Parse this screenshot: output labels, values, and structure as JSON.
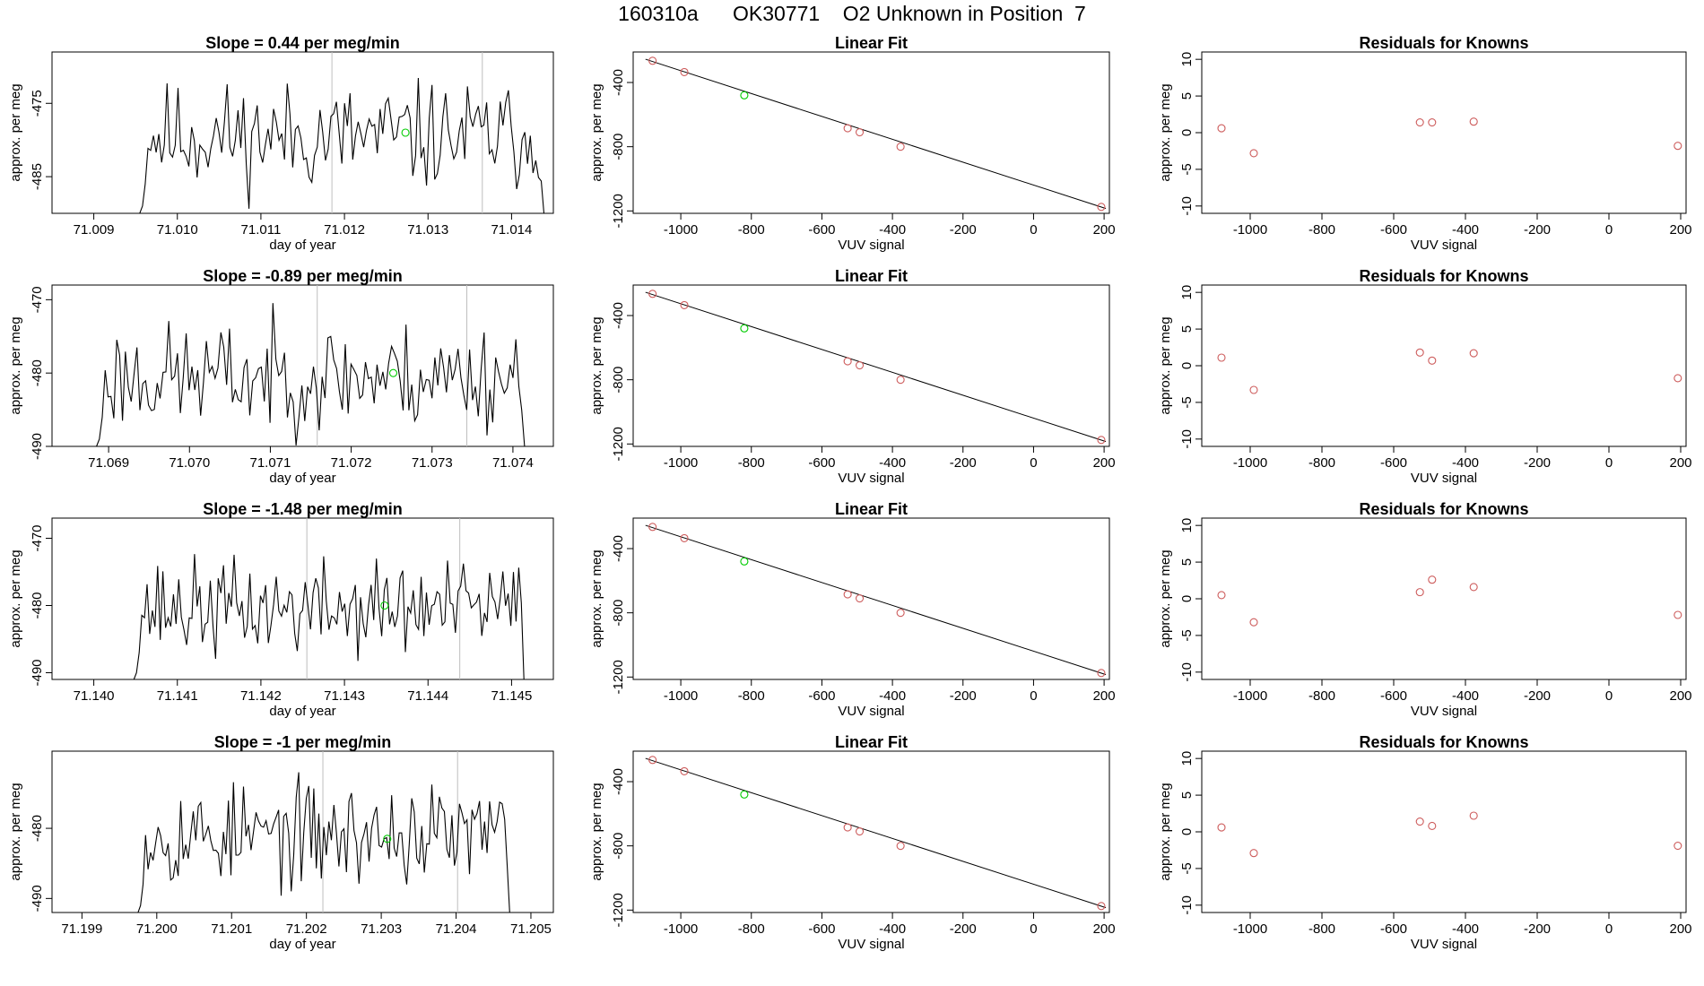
{
  "title": "160310a      OK30771    O2 Unknown in Position  7",
  "colors": {
    "line": "#000000",
    "known": "#cd5c5c",
    "unknown": "#00cc00",
    "vline": "#bebebe"
  },
  "chart_data": [
    {
      "type": "line",
      "title": "Slope =  0.44  per meg/min",
      "xlabel": "day of year",
      "ylabel": "approx. per meg",
      "xlim": [
        71.0085,
        71.0145
      ],
      "ylim": [
        -490,
        -468
      ],
      "xticks": [
        71.009,
        71.01,
        71.011,
        71.012,
        71.013,
        71.014
      ],
      "xtick_labels": [
        "71.009",
        "71.010",
        "71.011",
        "71.012",
        "71.013",
        "71.014"
      ],
      "yticks": [
        -475,
        -485
      ],
      "ytick_labels": [
        "-475",
        "-485"
      ],
      "x_start": 71.00955,
      "x_end": 71.01442,
      "seed": 11,
      "mean": -479.5,
      "spread": 4.5,
      "vlines": [
        71.01185,
        71.01365
      ],
      "unknown_point": {
        "x": 71.01273,
        "y": -479.0
      }
    },
    {
      "type": "scatter",
      "title": "Linear Fit",
      "xlabel": "VUV signal",
      "ylabel": "approx. per meg",
      "xlim": [
        -1135,
        215
      ],
      "ylim": [
        -1215,
        -210
      ],
      "xticks": [
        -1000,
        -800,
        -600,
        -400,
        -200,
        0,
        200
      ],
      "xtick_labels": [
        "-1000",
        "-800",
        "-600",
        "-400",
        "-200",
        "0",
        "200"
      ],
      "yticks": [
        -400,
        -800,
        -1200
      ],
      "ytick_labels": [
        "-400",
        "-800",
        "-1200"
      ],
      "known_points": [
        {
          "x": -1080,
          "y": -265
        },
        {
          "x": -990,
          "y": -335
        },
        {
          "x": -527,
          "y": -685
        },
        {
          "x": -493,
          "y": -710
        },
        {
          "x": -377,
          "y": -800
        },
        {
          "x": 192,
          "y": -1175
        }
      ],
      "unknown_point": {
        "x": -820,
        "y": -480
      },
      "fit_line": {
        "x": [
          -1100,
          205
        ],
        "y": [
          -255,
          -1185
        ]
      }
    },
    {
      "type": "scatter",
      "title": "Residuals for Knowns",
      "xlabel": "VUV signal",
      "ylabel": "approx. per meg",
      "xlim": [
        -1135,
        215
      ],
      "ylim": [
        -11,
        11
      ],
      "xticks": [
        -1000,
        -800,
        -600,
        -400,
        -200,
        0,
        200
      ],
      "xtick_labels": [
        "-1000",
        "-800",
        "-600",
        "-400",
        "-200",
        "0",
        "200"
      ],
      "yticks": [
        10,
        5,
        0,
        -5,
        -10
      ],
      "ytick_labels": [
        "10",
        "5",
        "0",
        "-5",
        "-10"
      ],
      "known_points": [
        {
          "x": -1080,
          "y": 0.6
        },
        {
          "x": -990,
          "y": -2.8
        },
        {
          "x": -527,
          "y": 1.4
        },
        {
          "x": -493,
          "y": 1.4
        },
        {
          "x": -377,
          "y": 1.5
        },
        {
          "x": 192,
          "y": -1.8
        }
      ]
    },
    {
      "type": "line",
      "title": "Slope =  -0.89  per meg/min",
      "xlabel": "day of year",
      "ylabel": "approx. per meg",
      "xlim": [
        71.0683,
        71.0745
      ],
      "ylim": [
        -490,
        -468
      ],
      "xticks": [
        71.069,
        71.07,
        71.071,
        71.072,
        71.073,
        71.074
      ],
      "xtick_labels": [
        "71.069",
        "71.070",
        "71.071",
        "71.072",
        "71.073",
        "71.074"
      ],
      "yticks": [
        -470,
        -480,
        -490
      ],
      "ytick_labels": [
        "-470",
        "-480",
        "-490"
      ],
      "x_start": 71.06885,
      "x_end": 71.07418,
      "seed": 23,
      "mean": -480.5,
      "spread": 4.5,
      "vlines": [
        71.07158,
        71.07343
      ],
      "unknown_point": {
        "x": 71.07252,
        "y": -480.0
      }
    },
    {
      "type": "scatter",
      "title": "Linear Fit",
      "xlabel": "VUV signal",
      "ylabel": "approx. per meg",
      "xlim": [
        -1135,
        215
      ],
      "ylim": [
        -1215,
        -210
      ],
      "xticks": [
        -1000,
        -800,
        -600,
        -400,
        -200,
        0,
        200
      ],
      "xtick_labels": [
        "-1000",
        "-800",
        "-600",
        "-400",
        "-200",
        "0",
        "200"
      ],
      "yticks": [
        -400,
        -800,
        -1200
      ],
      "ytick_labels": [
        "-400",
        "-800",
        "-1200"
      ],
      "known_points": [
        {
          "x": -1080,
          "y": -265
        },
        {
          "x": -990,
          "y": -335
        },
        {
          "x": -527,
          "y": -685
        },
        {
          "x": -493,
          "y": -710
        },
        {
          "x": -377,
          "y": -800
        },
        {
          "x": 192,
          "y": -1175
        }
      ],
      "unknown_point": {
        "x": -820,
        "y": -480
      },
      "fit_line": {
        "x": [
          -1100,
          205
        ],
        "y": [
          -255,
          -1185
        ]
      }
    },
    {
      "type": "scatter",
      "title": "Residuals for Knowns",
      "xlabel": "VUV signal",
      "ylabel": "approx. per meg",
      "xlim": [
        -1135,
        215
      ],
      "ylim": [
        -11,
        11
      ],
      "xticks": [
        -1000,
        -800,
        -600,
        -400,
        -200,
        0,
        200
      ],
      "xtick_labels": [
        "-1000",
        "-800",
        "-600",
        "-400",
        "-200",
        "0",
        "200"
      ],
      "yticks": [
        10,
        5,
        0,
        -5,
        -10
      ],
      "ytick_labels": [
        "10",
        "5",
        "0",
        "-5",
        "-10"
      ],
      "known_points": [
        {
          "x": -1080,
          "y": 1.1
        },
        {
          "x": -990,
          "y": -3.3
        },
        {
          "x": -527,
          "y": 1.8
        },
        {
          "x": -493,
          "y": 0.7
        },
        {
          "x": -377,
          "y": 1.7
        },
        {
          "x": 192,
          "y": -1.7
        }
      ]
    },
    {
      "type": "line",
      "title": "Slope =  -1.48  per meg/min",
      "xlabel": "day of year",
      "ylabel": "approx. per meg",
      "xlim": [
        71.1395,
        71.1455
      ],
      "ylim": [
        -491,
        -467
      ],
      "xticks": [
        71.14,
        71.141,
        71.142,
        71.143,
        71.144,
        71.145
      ],
      "xtick_labels": [
        "71.140",
        "71.141",
        "71.142",
        "71.143",
        "71.144",
        "71.145"
      ],
      "yticks": [
        -470,
        -480,
        -490
      ],
      "ytick_labels": [
        "-470",
        "-480",
        "-490"
      ],
      "x_start": 71.14048,
      "x_end": 71.14518,
      "seed": 37,
      "mean": -480.5,
      "spread": 4.5,
      "vlines": [
        71.14255,
        71.14438
      ],
      "unknown_point": {
        "x": 71.14348,
        "y": -480.0
      }
    },
    {
      "type": "scatter",
      "title": "Linear Fit",
      "xlabel": "VUV signal",
      "ylabel": "approx. per meg",
      "xlim": [
        -1135,
        215
      ],
      "ylim": [
        -1215,
        -210
      ],
      "xticks": [
        -1000,
        -800,
        -600,
        -400,
        -200,
        0,
        200
      ],
      "xtick_labels": [
        "-1000",
        "-800",
        "-600",
        "-400",
        "-200",
        "0",
        "200"
      ],
      "yticks": [
        -400,
        -800,
        -1200
      ],
      "ytick_labels": [
        "-400",
        "-800",
        "-1200"
      ],
      "known_points": [
        {
          "x": -1080,
          "y": -265
        },
        {
          "x": -990,
          "y": -335
        },
        {
          "x": -527,
          "y": -685
        },
        {
          "x": -493,
          "y": -710
        },
        {
          "x": -377,
          "y": -800
        },
        {
          "x": 192,
          "y": -1175
        }
      ],
      "unknown_point": {
        "x": -820,
        "y": -480
      },
      "fit_line": {
        "x": [
          -1100,
          205
        ],
        "y": [
          -255,
          -1185
        ]
      }
    },
    {
      "type": "scatter",
      "title": "Residuals for Knowns",
      "xlabel": "VUV signal",
      "ylabel": "approx. per meg",
      "xlim": [
        -1135,
        215
      ],
      "ylim": [
        -11,
        11
      ],
      "xticks": [
        -1000,
        -800,
        -600,
        -400,
        -200,
        0,
        200
      ],
      "xtick_labels": [
        "-1000",
        "-800",
        "-600",
        "-400",
        "-200",
        "0",
        "200"
      ],
      "yticks": [
        10,
        5,
        0,
        -5,
        -10
      ],
      "ytick_labels": [
        "10",
        "5",
        "0",
        "-5",
        "-10"
      ],
      "known_points": [
        {
          "x": -1080,
          "y": 0.5
        },
        {
          "x": -990,
          "y": -3.2
        },
        {
          "x": -527,
          "y": 0.9
        },
        {
          "x": -493,
          "y": 2.6
        },
        {
          "x": -377,
          "y": 1.6
        },
        {
          "x": 192,
          "y": -2.2
        }
      ]
    },
    {
      "type": "line",
      "title": "Slope =  -1  per meg/min",
      "xlabel": "day of year",
      "ylabel": "approx. per meg",
      "xlim": [
        71.1986,
        71.2053
      ],
      "ylim": [
        -492,
        -469
      ],
      "xticks": [
        71.199,
        71.2,
        71.201,
        71.202,
        71.203,
        71.204,
        71.205
      ],
      "xtick_labels": [
        "71.199",
        "71.200",
        "71.201",
        "71.202",
        "71.203",
        "71.204",
        "71.205"
      ],
      "yticks": [
        -480,
        -490
      ],
      "ytick_labels": [
        "-480",
        "-490"
      ],
      "x_start": 71.19975,
      "x_end": 71.20475,
      "seed": 53,
      "mean": -481.0,
      "spread": 4.5,
      "vlines": [
        71.20222,
        71.20402
      ],
      "unknown_point": {
        "x": 71.20308,
        "y": -481.5
      }
    },
    {
      "type": "scatter",
      "title": "Linear Fit",
      "xlabel": "VUV signal",
      "ylabel": "approx. per meg",
      "xlim": [
        -1135,
        215
      ],
      "ylim": [
        -1215,
        -210
      ],
      "xticks": [
        -1000,
        -800,
        -600,
        -400,
        -200,
        0,
        200
      ],
      "xtick_labels": [
        "-1000",
        "-800",
        "-600",
        "-400",
        "-200",
        "0",
        "200"
      ],
      "yticks": [
        -400,
        -800,
        -1200
      ],
      "ytick_labels": [
        "-400",
        "-800",
        "-1200"
      ],
      "known_points": [
        {
          "x": -1080,
          "y": -265
        },
        {
          "x": -990,
          "y": -335
        },
        {
          "x": -527,
          "y": -685
        },
        {
          "x": -493,
          "y": -710
        },
        {
          "x": -377,
          "y": -800
        },
        {
          "x": 192,
          "y": -1175
        }
      ],
      "unknown_point": {
        "x": -820,
        "y": -480
      },
      "fit_line": {
        "x": [
          -1100,
          205
        ],
        "y": [
          -255,
          -1185
        ]
      }
    },
    {
      "type": "scatter",
      "title": "Residuals for Knowns",
      "xlabel": "VUV signal",
      "ylabel": "approx. per meg",
      "xlim": [
        -1135,
        215
      ],
      "ylim": [
        -11,
        11
      ],
      "xticks": [
        -1000,
        -800,
        -600,
        -400,
        -200,
        0,
        200
      ],
      "xtick_labels": [
        "-1000",
        "-800",
        "-600",
        "-400",
        "-200",
        "0",
        "200"
      ],
      "yticks": [
        10,
        5,
        0,
        -5,
        -10
      ],
      "ytick_labels": [
        "10",
        "5",
        "0",
        "-5",
        "-10"
      ],
      "known_points": [
        {
          "x": -1080,
          "y": 0.6
        },
        {
          "x": -990,
          "y": -2.9
        },
        {
          "x": -527,
          "y": 1.4
        },
        {
          "x": -493,
          "y": 0.8
        },
        {
          "x": -377,
          "y": 2.2
        },
        {
          "x": 192,
          "y": -1.9
        }
      ]
    }
  ]
}
